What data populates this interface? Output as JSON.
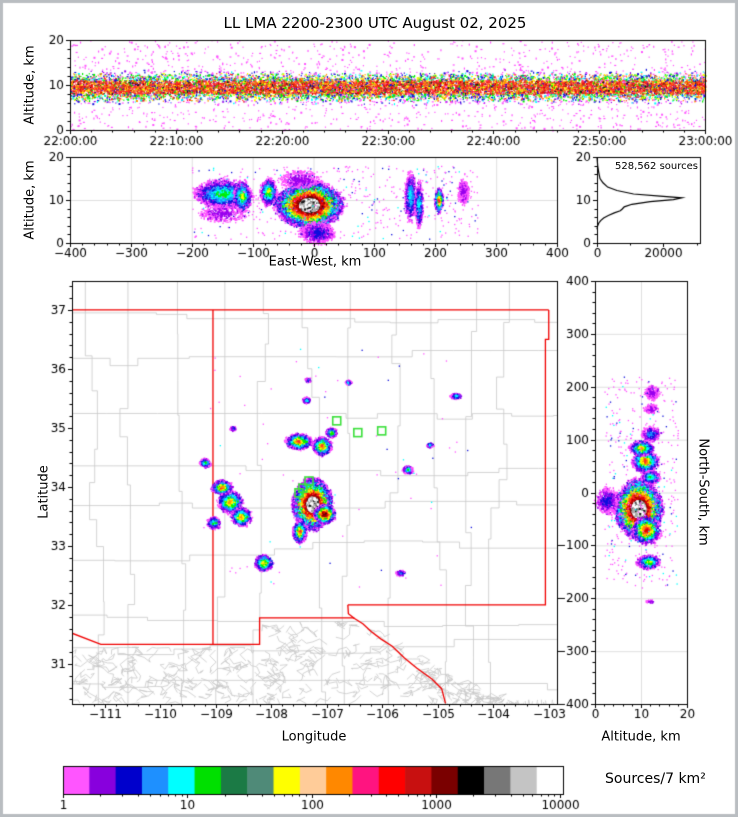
{
  "title": "LL LMA 2200-2300 UTC August 02, 2025",
  "colors": {
    "background": "#ffffff",
    "frame": "#000000",
    "figure_border": "#b9bdc1",
    "county_line": "#c9c9c9",
    "state_border": "#f00000",
    "grid_line": "#e0e0e0",
    "station_marker": "#3ce03c",
    "histogram_line": "#000000"
  },
  "palette_density": [
    "#FF55FF",
    "#9900EE",
    "#1010DD",
    "#1E90FF",
    "#00FFFF",
    "#00EE00",
    "#FFFF00",
    "#FF9900",
    "#FF2A2A",
    "#DD0000",
    "#990000",
    "#5C0000",
    "#1A1A1A",
    "#A8A8A8",
    "#FFFFFF"
  ],
  "panels": {
    "time_height": {
      "ylabel": "Altitude, km",
      "yticks": [
        "0",
        "10",
        "20"
      ],
      "xticks": [
        "22:00:00",
        "22:10:00",
        "22:20:00",
        "22:30:00",
        "22:40:00",
        "22:50:00",
        "23:00:00"
      ]
    },
    "east_west": {
      "ylabel": "Altitude, km",
      "xlabel": "East-West, km",
      "xticks": [
        "−400",
        "−300",
        "−200",
        "−100",
        "0",
        "100",
        "200",
        "300",
        "400"
      ],
      "yticks": [
        "0",
        "10",
        "20"
      ]
    },
    "histogram": {
      "annotation": "528,562 sources",
      "xticks": [
        "0",
        "20000"
      ],
      "yticks": [
        "0",
        "10",
        "20"
      ]
    },
    "plan_view": {
      "xlabel": "Longitude",
      "ylabel": "Latitude",
      "xticks": [
        "−111",
        "−110",
        "−109",
        "−108",
        "−107",
        "−106",
        "−105",
        "−104",
        "−103"
      ],
      "yticks": [
        "31",
        "32",
        "33",
        "34",
        "35",
        "36",
        "37"
      ]
    },
    "north_south": {
      "xlabel": "Altitude, km",
      "ylabel": "North-South, km",
      "xticks": [
        "0",
        "10",
        "20"
      ],
      "yticks": [
        "400",
        "300",
        "200",
        "100",
        "0",
        "−100",
        "−200",
        "−300",
        "−400"
      ]
    },
    "colorbar": {
      "label": "Sources/7 km²",
      "ticks": [
        "1",
        "10",
        "100",
        "1000",
        "10000"
      ],
      "colors": [
        "#FF55FF",
        "#8800DD",
        "#0000CC",
        "#1E90FF",
        "#00FFFF",
        "#00E000",
        "#1B7A45",
        "#4F8A78",
        "#FFFF00",
        "#FFCC99",
        "#FF8800",
        "#FF1480",
        "#FF0000",
        "#C81010",
        "#7A0000",
        "#000000",
        "#777777",
        "#C4C4C4",
        "#FFFFFF"
      ]
    }
  },
  "chart_data": [
    {
      "id": "time_height",
      "type": "scatter",
      "ylabel": "Altitude, km",
      "xlim": [
        "22:00:00",
        "23:00:00"
      ],
      "ylim": [
        0,
        20
      ],
      "band_center_km": 9.6,
      "band_sigma_km": 2.0,
      "outlier_fraction": 0.1,
      "n_points": 15000
    },
    {
      "id": "east_west_cross_section",
      "type": "scatter",
      "xlabel": "East-West, km",
      "ylabel": "Altitude, km",
      "xlim": [
        -400,
        400
      ],
      "ylim": [
        0,
        20
      ],
      "grid": true,
      "clusters": [
        [
          -150,
          11.5,
          45,
          3.2,
          5,
          2200
        ],
        [
          -150,
          7.0,
          40,
          2.0,
          1,
          350
        ],
        [
          -118,
          11.0,
          14,
          3.5,
          6,
          700
        ],
        [
          -75,
          12.0,
          13,
          3.0,
          6,
          900
        ],
        [
          -8,
          9.0,
          52,
          5.0,
          14,
          9000
        ],
        [
          5,
          2.5,
          28,
          2.5,
          2,
          700
        ],
        [
          -25,
          15.0,
          35,
          2.0,
          1,
          400
        ],
        [
          158,
          11.0,
          9,
          5.5,
          4,
          700
        ],
        [
          172,
          9.0,
          7,
          5.0,
          4,
          500
        ],
        [
          205,
          10.0,
          7,
          2.8,
          8,
          450
        ],
        [
          245,
          12.0,
          9,
          2.8,
          1,
          280
        ]
      ],
      "scatter_box": [
        -200,
        270,
        1,
        18,
        500
      ]
    },
    {
      "id": "altitude_histogram",
      "type": "line",
      "annotation": "528,562 sources",
      "total_sources": 528562,
      "xlim": [
        0,
        31000
      ],
      "ylim": [
        0,
        20
      ],
      "profile_count_alt": [
        [
          0,
          20
        ],
        [
          200,
          18
        ],
        [
          500,
          16.5
        ],
        [
          900,
          15
        ],
        [
          1800,
          14
        ],
        [
          3200,
          13
        ],
        [
          6000,
          12.2
        ],
        [
          11000,
          11.4
        ],
        [
          19000,
          10.9
        ],
        [
          25500,
          10.5
        ],
        [
          23000,
          10.1
        ],
        [
          16000,
          9.6
        ],
        [
          10500,
          9.0
        ],
        [
          8200,
          8.4
        ],
        [
          7600,
          7.9
        ],
        [
          7000,
          7.5
        ],
        [
          5200,
          7.0
        ],
        [
          3400,
          6.4
        ],
        [
          2000,
          5.8
        ],
        [
          1100,
          5.2
        ],
        [
          500,
          4.6
        ],
        [
          150,
          3.9
        ],
        [
          0,
          3.2
        ]
      ]
    },
    {
      "id": "plan_view_map",
      "type": "scatter",
      "xlabel": "Longitude",
      "ylabel": "Latitude",
      "xlim": [
        -111.59,
        -102.86
      ],
      "ylim": [
        30.32,
        37.49
      ],
      "clusters": [
        [
          -107.27,
          33.72,
          0.33,
          0.4,
          14,
          9000
        ],
        [
          -107.05,
          33.55,
          0.18,
          0.15,
          11,
          1500
        ],
        [
          -107.5,
          33.25,
          0.12,
          0.18,
          8,
          900
        ],
        [
          -107.52,
          34.78,
          0.22,
          0.13,
          8,
          1100
        ],
        [
          -107.1,
          34.7,
          0.17,
          0.15,
          8,
          900
        ],
        [
          -106.93,
          34.93,
          0.1,
          0.08,
          6,
          350
        ],
        [
          -108.9,
          34.0,
          0.18,
          0.12,
          8,
          700
        ],
        [
          -108.75,
          33.75,
          0.22,
          0.18,
          7,
          800
        ],
        [
          -108.55,
          33.5,
          0.18,
          0.15,
          7,
          600
        ],
        [
          -109.05,
          33.4,
          0.12,
          0.1,
          5,
          300
        ],
        [
          -108.15,
          32.72,
          0.16,
          0.13,
          7,
          600
        ],
        [
          -109.2,
          34.42,
          0.1,
          0.07,
          5,
          250
        ],
        [
          -108.7,
          35.0,
          0.05,
          0.04,
          3,
          80
        ],
        [
          -107.38,
          35.48,
          0.07,
          0.05,
          4,
          150
        ],
        [
          -107.35,
          35.82,
          0.05,
          0.04,
          3,
          80
        ],
        [
          -106.62,
          35.78,
          0.05,
          0.04,
          4,
          90
        ],
        [
          -105.55,
          34.3,
          0.09,
          0.07,
          5,
          220
        ],
        [
          -105.15,
          34.72,
          0.06,
          0.04,
          4,
          100
        ],
        [
          -104.68,
          35.55,
          0.1,
          0.05,
          4,
          150
        ],
        [
          -105.68,
          32.55,
          0.09,
          0.05,
          3,
          90
        ]
      ],
      "scatter_box": [
        -109.3,
        -104.2,
        32.3,
        36.4,
        70
      ],
      "stations": [
        [
          -106.82,
          35.12
        ],
        [
          -106.44,
          34.92
        ],
        [
          -106.01,
          34.95
        ],
        [
          -107.32,
          34.1
        ],
        [
          -107.43,
          33.98
        ],
        [
          -107.5,
          33.9
        ]
      ],
      "state_borders": [
        [
          [
            -111.59,
            37.0
          ],
          [
            -103.0,
            37.0
          ]
        ],
        [
          [
            -103.0,
            37.0
          ],
          [
            -103.0,
            36.5
          ],
          [
            -103.06,
            36.5
          ],
          [
            -103.06,
            32.0
          ],
          [
            -106.62,
            32.0
          ]
        ],
        [
          [
            -106.62,
            32.0
          ],
          [
            -106.61,
            31.85
          ],
          [
            -106.5,
            31.77
          ],
          [
            -106.35,
            31.68
          ],
          [
            -106.2,
            31.55
          ],
          [
            -106.02,
            31.42
          ],
          [
            -105.82,
            31.3
          ],
          [
            -105.6,
            31.1
          ],
          [
            -105.38,
            30.93
          ],
          [
            -105.1,
            30.74
          ],
          [
            -104.93,
            30.58
          ],
          [
            -104.86,
            30.33
          ]
        ],
        [
          [
            -109.05,
            37.0
          ],
          [
            -109.05,
            31.33
          ]
        ],
        [
          [
            -111.59,
            31.52
          ],
          [
            -111.07,
            31.33
          ],
          [
            -108.21,
            31.33
          ],
          [
            -108.21,
            31.78
          ],
          [
            -106.53,
            31.78
          ],
          [
            -106.5,
            31.77
          ]
        ]
      ]
    },
    {
      "id": "north_south_cross_section",
      "type": "scatter",
      "xlabel": "Altitude, km",
      "ylabel": "North-South, km",
      "xlim": [
        0,
        20
      ],
      "ylim": [
        -400,
        400
      ],
      "grid": true,
      "clusters": [
        [
          -30,
          9.3,
          52,
          4.8,
          14,
          8500
        ],
        [
          -15,
          2.5,
          25,
          2.5,
          2,
          600
        ],
        [
          -70,
          11.0,
          25,
          3.0,
          9,
          1200
        ],
        [
          60,
          10.8,
          20,
          2.7,
          8,
          1300
        ],
        [
          85,
          10.0,
          14,
          2.5,
          7,
          700
        ],
        [
          30,
          12.0,
          12,
          2.0,
          5,
          400
        ],
        [
          112,
          12.0,
          14,
          2.0,
          3,
          300
        ],
        [
          160,
          12.0,
          9,
          1.5,
          1,
          150
        ],
        [
          190,
          12.3,
          13,
          1.6,
          1,
          220
        ],
        [
          -130,
          11.5,
          13,
          2.4,
          6,
          600
        ],
        [
          -205,
          12.0,
          3,
          1.0,
          1,
          40
        ]
      ],
      "scatter_box": [
        -180,
        220,
        2,
        18,
        420
      ]
    },
    {
      "id": "colorbar",
      "type": "colorbar",
      "label": "Sources/7 km²",
      "scale": "log",
      "range": [
        1,
        10000
      ],
      "ticks": [
        1,
        10,
        100,
        1000,
        10000
      ]
    }
  ]
}
